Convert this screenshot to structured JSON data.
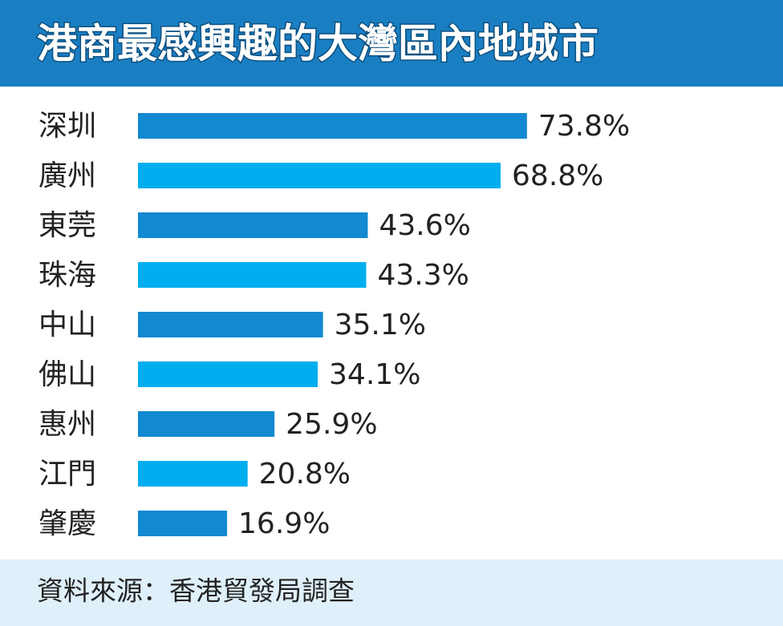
{
  "chart_data": {
    "type": "bar",
    "orientation": "horizontal",
    "title": "港商最感興趣的大灣區內地城市",
    "categories": [
      "深圳",
      "廣州",
      "東莞",
      "珠海",
      "中山",
      "佛山",
      "惠州",
      "江門",
      "肇慶"
    ],
    "values": [
      73.8,
      68.8,
      43.6,
      43.3,
      35.1,
      34.1,
      25.9,
      20.8,
      16.9
    ],
    "value_labels": [
      "73.8%",
      "68.8%",
      "43.6%",
      "43.3%",
      "35.1%",
      "34.1%",
      "25.9%",
      "20.8%",
      "16.9%"
    ],
    "colors": [
      "#1289d0",
      "#00aeef",
      "#1289d0",
      "#00aeef",
      "#1289d0",
      "#00aeef",
      "#1289d0",
      "#00aeef",
      "#1289d0"
    ],
    "source": "資料來源：香港貿發局調查"
  }
}
